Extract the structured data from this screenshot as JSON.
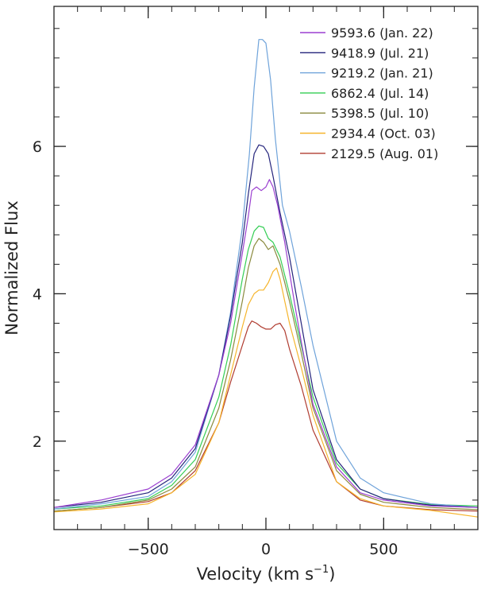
{
  "chart_data": {
    "type": "line",
    "title": "",
    "xlabel": "Velocity (km s",
    "xlabel_sup": "−1",
    "xlabel_close": ")",
    "ylabel": "Normalized Flux",
    "xlim": [
      -900,
      900
    ],
    "ylim": [
      0.8,
      7.9
    ],
    "xticks": [
      {
        "value": -500,
        "label": "−500"
      },
      {
        "value": 0,
        "label": "0"
      },
      {
        "value": 500,
        "label": "500"
      }
    ],
    "yticks": [
      {
        "value": 2,
        "label": "2"
      },
      {
        "value": 4,
        "label": "4"
      },
      {
        "value": 6,
        "label": "6"
      }
    ],
    "x_minor_step": 100,
    "y_minor_step": 0.4,
    "grid": false,
    "legend_position": "top-right",
    "series": [
      {
        "name": "9593.6 (Jan. 22)",
        "color": "#9b3fd0",
        "x": [
          -900,
          -700,
          -500,
          -400,
          -300,
          -200,
          -150,
          -100,
          -75,
          -60,
          -40,
          -20,
          0,
          15,
          30,
          50,
          80,
          120,
          150,
          200,
          300,
          400,
          500,
          700,
          900
        ],
        "y": [
          1.1,
          1.2,
          1.35,
          1.55,
          1.95,
          2.9,
          3.6,
          4.55,
          5.05,
          5.4,
          5.45,
          5.4,
          5.45,
          5.55,
          5.45,
          5.2,
          4.7,
          3.9,
          3.35,
          2.5,
          1.65,
          1.3,
          1.2,
          1.12,
          1.1
        ]
      },
      {
        "name": "9418.9 (Jul. 21)",
        "color": "#24247c",
        "x": [
          -900,
          -700,
          -500,
          -400,
          -300,
          -200,
          -150,
          -100,
          -75,
          -50,
          -30,
          -10,
          10,
          30,
          60,
          100,
          150,
          200,
          300,
          400,
          500,
          700,
          900
        ],
        "y": [
          1.1,
          1.17,
          1.3,
          1.5,
          1.9,
          2.9,
          3.7,
          4.7,
          5.35,
          5.9,
          6.02,
          6.0,
          5.9,
          5.6,
          5.1,
          4.5,
          3.6,
          2.7,
          1.75,
          1.35,
          1.22,
          1.13,
          1.1
        ]
      },
      {
        "name": "9219.2 (Jan. 21)",
        "color": "#6fa3da",
        "x": [
          -900,
          -700,
          -500,
          -400,
          -300,
          -200,
          -150,
          -100,
          -70,
          -50,
          -30,
          -15,
          0,
          20,
          40,
          70,
          100,
          150,
          200,
          300,
          400,
          500,
          700,
          900
        ],
        "y": [
          1.08,
          1.15,
          1.25,
          1.45,
          1.85,
          2.9,
          3.75,
          4.9,
          5.9,
          6.8,
          7.45,
          7.45,
          7.4,
          6.9,
          6.1,
          5.2,
          4.85,
          4.1,
          3.3,
          2.0,
          1.5,
          1.3,
          1.15,
          1.1
        ]
      },
      {
        "name": "6862.4 (Jul. 14)",
        "color": "#34ce54",
        "x": [
          -900,
          -700,
          -500,
          -400,
          -300,
          -200,
          -150,
          -100,
          -75,
          -50,
          -30,
          -10,
          10,
          30,
          60,
          100,
          150,
          200,
          300,
          400,
          500,
          700,
          900
        ],
        "y": [
          1.08,
          1.12,
          1.22,
          1.4,
          1.75,
          2.6,
          3.3,
          4.2,
          4.6,
          4.85,
          4.92,
          4.9,
          4.75,
          4.7,
          4.5,
          4.0,
          3.3,
          2.6,
          1.7,
          1.35,
          1.22,
          1.14,
          1.12
        ]
      },
      {
        "name": "5398.5 (Jul. 10)",
        "color": "#8a8a3e",
        "x": [
          -900,
          -700,
          -500,
          -400,
          -300,
          -200,
          -150,
          -100,
          -75,
          -50,
          -30,
          -10,
          10,
          30,
          60,
          100,
          150,
          200,
          300,
          400,
          500,
          700,
          900
        ],
        "y": [
          1.05,
          1.1,
          1.2,
          1.35,
          1.65,
          2.45,
          3.1,
          3.9,
          4.35,
          4.65,
          4.75,
          4.7,
          4.6,
          4.65,
          4.4,
          3.9,
          3.2,
          2.45,
          1.6,
          1.28,
          1.17,
          1.1,
          1.07
        ]
      },
      {
        "name": "2934.4 (Oct. 03)",
        "color": "#f6b52c",
        "x": [
          -900,
          -700,
          -500,
          -400,
          -300,
          -200,
          -150,
          -100,
          -75,
          -50,
          -30,
          -10,
          10,
          30,
          45,
          60,
          80,
          100,
          150,
          200,
          300,
          400,
          500,
          700,
          900
        ],
        "y": [
          1.04,
          1.08,
          1.15,
          1.3,
          1.55,
          2.25,
          2.9,
          3.55,
          3.85,
          4.0,
          4.05,
          4.05,
          4.15,
          4.3,
          4.35,
          4.2,
          3.9,
          3.6,
          3.0,
          2.35,
          1.45,
          1.22,
          1.12,
          1.06,
          0.97
        ]
      },
      {
        "name": "2129.5 (Aug. 01)",
        "color": "#b03c30",
        "x": [
          -900,
          -700,
          -500,
          -400,
          -300,
          -200,
          -150,
          -100,
          -75,
          -60,
          -40,
          -20,
          0,
          20,
          40,
          60,
          80,
          100,
          150,
          200,
          300,
          400,
          500,
          700,
          900
        ],
        "y": [
          1.05,
          1.1,
          1.18,
          1.3,
          1.6,
          2.25,
          2.8,
          3.3,
          3.55,
          3.63,
          3.6,
          3.55,
          3.52,
          3.52,
          3.58,
          3.6,
          3.5,
          3.25,
          2.75,
          2.15,
          1.45,
          1.2,
          1.12,
          1.07,
          1.05
        ]
      }
    ]
  }
}
